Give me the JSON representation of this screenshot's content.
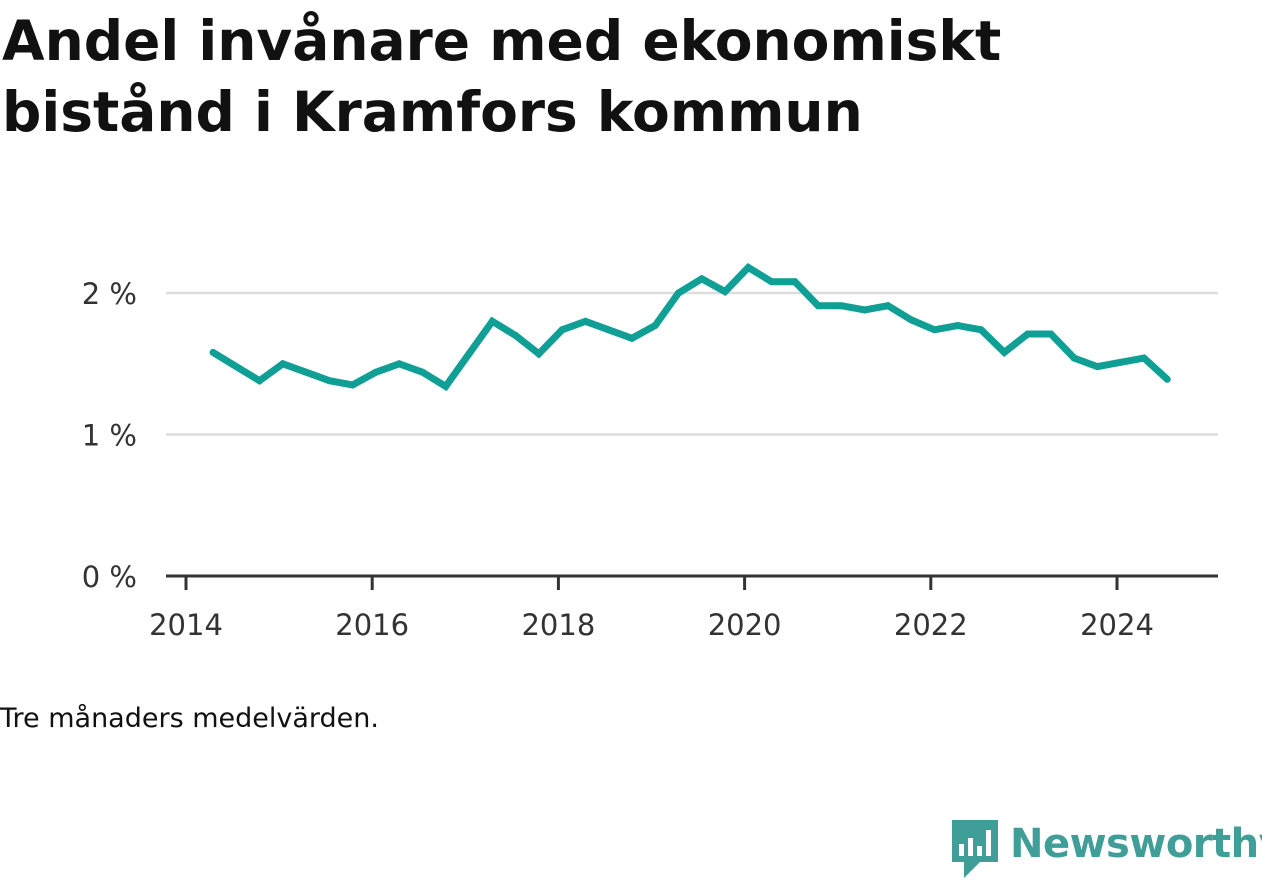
{
  "title": "Andel invånare med ekonomiskt bistånd i Kramfors kommun",
  "note": "Tre månaders medelvärden.",
  "brand": {
    "name": "Newsworthy",
    "color": "#3f9e98",
    "icon": "newsworthy-chart-icon"
  },
  "colors": {
    "line": "#0f9f95",
    "grid": "#dddddd",
    "axis": "#333333",
    "text": "#333333"
  },
  "chart_data": {
    "type": "line",
    "title": "Andel invånare med ekonomiskt bistånd i Kramfors kommun",
    "xlabel": "",
    "ylabel": "",
    "y_unit": "%",
    "x_ticks": [
      2014,
      2016,
      2018,
      2020,
      2022,
      2024
    ],
    "x_tick_labels": [
      "2014",
      "2016",
      "2018",
      "2020",
      "2022",
      "2024"
    ],
    "y_ticks": [
      0,
      1,
      2
    ],
    "y_tick_labels": [
      "0 %",
      "1 %",
      "2 %"
    ],
    "xlim": [
      2014,
      2025.1
    ],
    "ylim": [
      0,
      2.2
    ],
    "grid": "horizontal",
    "legend": "none",
    "x": [
      2014.29,
      2014.54,
      2014.79,
      2015.04,
      2015.29,
      2015.54,
      2015.79,
      2016.04,
      2016.29,
      2016.54,
      2016.79,
      2017.04,
      2017.29,
      2017.54,
      2017.79,
      2018.04,
      2018.29,
      2018.54,
      2018.79,
      2019.04,
      2019.29,
      2019.54,
      2019.79,
      2020.04,
      2020.29,
      2020.54,
      2020.79,
      2021.04,
      2021.29,
      2021.54,
      2021.79,
      2022.04,
      2022.29,
      2022.54,
      2022.79,
      2023.04,
      2023.29,
      2023.54,
      2023.79,
      2024.04,
      2024.29,
      2024.54
    ],
    "series": [
      {
        "values": [
          1.58,
          1.48,
          1.38,
          1.5,
          1.44,
          1.38,
          1.35,
          1.44,
          1.5,
          1.44,
          1.34,
          1.57,
          1.8,
          1.7,
          1.57,
          1.74,
          1.8,
          1.74,
          1.68,
          1.77,
          2.0,
          2.1,
          2.01,
          2.18,
          2.08,
          2.08,
          1.91,
          1.91,
          1.88,
          1.91,
          1.81,
          1.74,
          1.77,
          1.74,
          1.58,
          1.71,
          1.71,
          1.54,
          1.48,
          1.51,
          1.54,
          1.39
        ]
      }
    ]
  }
}
